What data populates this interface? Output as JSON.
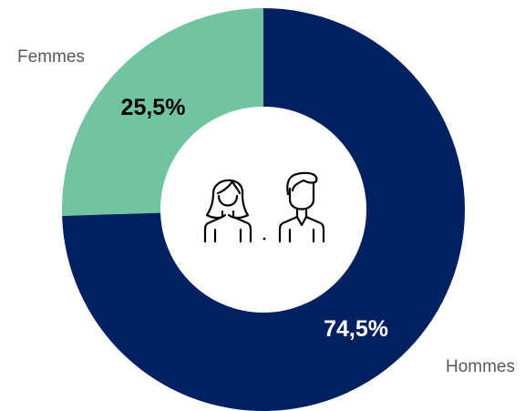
{
  "chart_data": {
    "type": "pie",
    "variant": "donut",
    "categories": [
      "Femmes",
      "Hommes"
    ],
    "values": [
      25.5,
      74.5
    ],
    "value_labels": [
      "25,5%",
      "74,5%"
    ],
    "colors": [
      "#72c3a2",
      "#002060"
    ],
    "value_label_colors": [
      "#000000",
      "#ffffff"
    ],
    "center_icons": [
      "woman-icon",
      "man-icon"
    ]
  }
}
